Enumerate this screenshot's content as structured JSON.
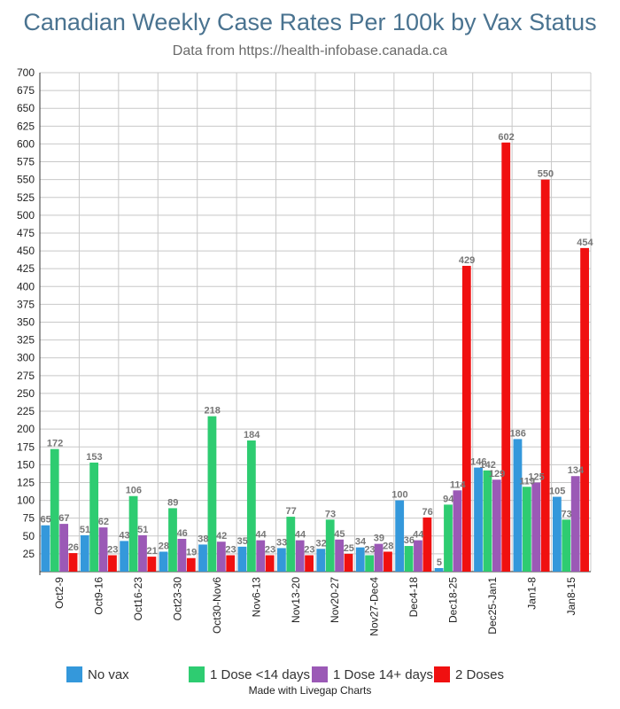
{
  "chart_data": {
    "type": "bar",
    "title": "Canadian Weekly Case Rates Per 100k by Vax Status",
    "subtitle": "Data from https://health-infobase.canada.ca",
    "categories": [
      "Oct2-9",
      "Oct9-16",
      "Oct16-23",
      "Oct23-30",
      "Oct30-Nov6",
      "Nov6-13",
      "Nov13-20",
      "Nov20-27",
      "Nov27-Dec4",
      "Dec4-18",
      "Dec18-25",
      "Dec25-Jan1",
      "Jan1-8",
      "Jan8-15"
    ],
    "series": [
      {
        "name": "No vax",
        "color": "#3498db",
        "values": [
          65,
          51,
          43,
          28,
          38,
          35,
          33,
          32,
          34,
          100,
          5,
          146,
          186,
          105
        ]
      },
      {
        "name": "1 Dose <14 days",
        "color": "#2ecc71",
        "values": [
          172,
          153,
          106,
          89,
          218,
          184,
          77,
          73,
          23,
          36,
          94,
          142,
          119,
          73
        ]
      },
      {
        "name": "1 Dose 14+ days",
        "color": "#9b59b6",
        "values": [
          67,
          62,
          51,
          46,
          42,
          44,
          44,
          45,
          39,
          44,
          114,
          129,
          125,
          134
        ]
      },
      {
        "name": "2 Doses",
        "color": "#f01010",
        "values": [
          26,
          23,
          21,
          19,
          23,
          23,
          23,
          25,
          28,
          76,
          429,
          602,
          550,
          454
        ]
      }
    ],
    "ylim": [
      0,
      700
    ],
    "yticks": [
      25,
      50,
      75,
      100,
      125,
      150,
      175,
      200,
      225,
      250,
      275,
      300,
      325,
      350,
      375,
      400,
      425,
      450,
      475,
      500,
      525,
      550,
      575,
      600,
      625,
      650,
      675,
      700
    ],
    "grid": true,
    "legend_position": "bottom",
    "credit": "Made with Livegap Charts"
  }
}
